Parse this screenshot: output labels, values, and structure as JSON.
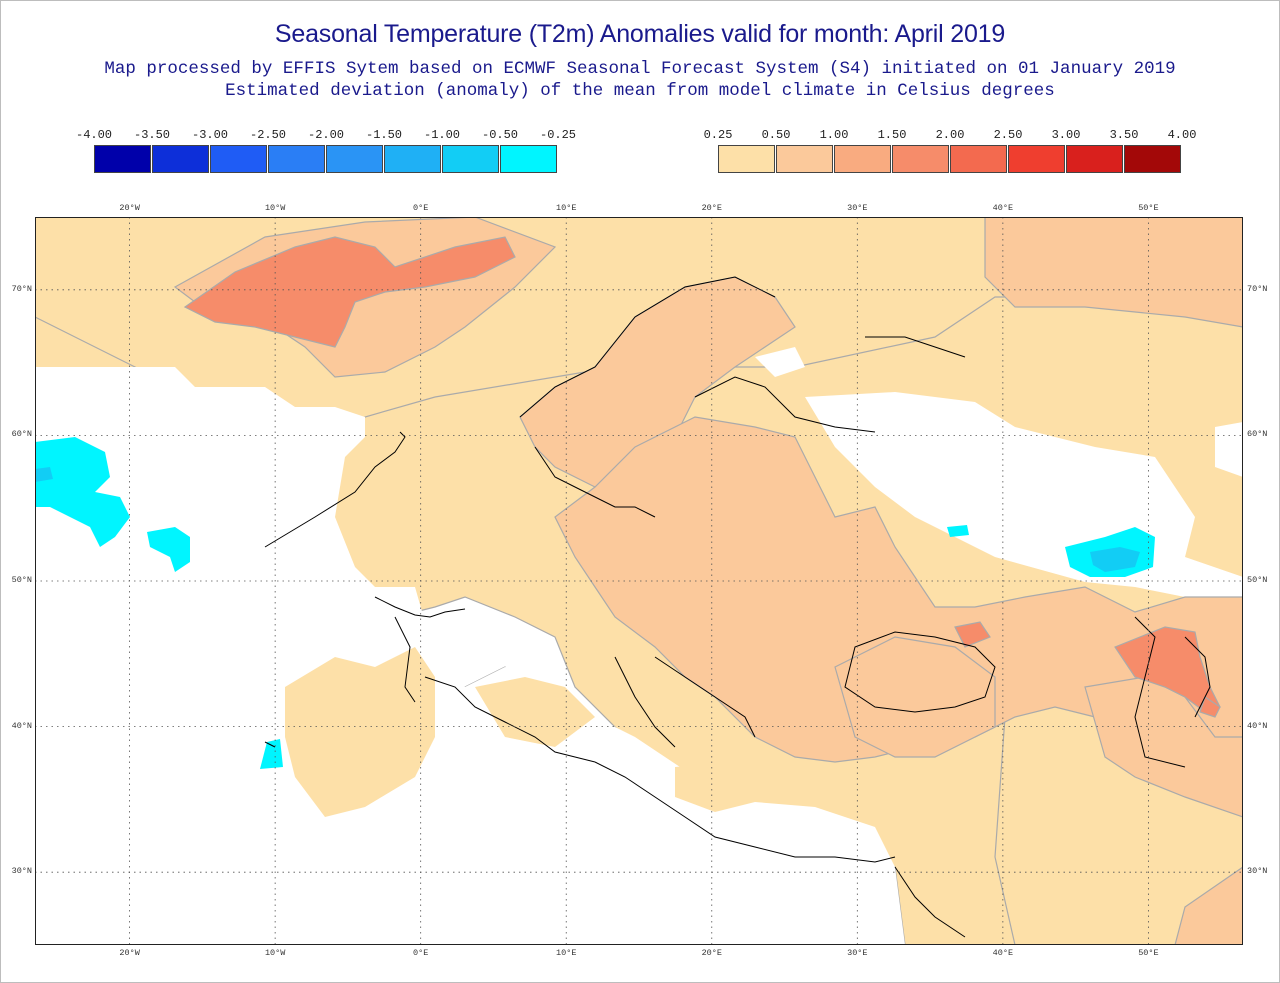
{
  "header": {
    "title": "Seasonal Temperature (T2m) Anomalies valid for month: April 2019",
    "subtitle_1": "Map processed by EFFIS Sytem based on ECMWF Seasonal Forecast System (S4) initiated on 01 January 2019",
    "subtitle_2": "Estimated deviation (anomaly) of the mean from model climate in Celsius degrees"
  },
  "legend": {
    "negative": {
      "labels": [
        "-4.00",
        "-3.50",
        "-3.00",
        "-2.50",
        "-2.00",
        "-1.50",
        "-1.00",
        "-0.50",
        "-0.25"
      ],
      "colors": [
        "#0000aa",
        "#0d2fd9",
        "#1f5cf5",
        "#2a7ef5",
        "#2a94f5",
        "#1fb0f5",
        "#12cdf5",
        "#00f5ff"
      ]
    },
    "positive": {
      "labels": [
        "0.25",
        "0.50",
        "1.00",
        "1.50",
        "2.00",
        "2.50",
        "3.00",
        "3.50",
        "4.00"
      ],
      "colors": [
        "#fde0a8",
        "#fbc99b",
        "#f9ab80",
        "#f68c6a",
        "#f36a4f",
        "#ef3e2f",
        "#d9201d",
        "#a30808"
      ]
    }
  },
  "map": {
    "lon_ticks": [
      "20°W",
      "10°W",
      "0°E",
      "10°E",
      "20°E",
      "30°E",
      "40°E",
      "50°E"
    ],
    "lat_ticks": [
      "70°N",
      "60°N",
      "50°N",
      "40°N",
      "30°N"
    ],
    "lon_range": [
      -26.5,
      56.5
    ],
    "lat_range": [
      25,
      75
    ],
    "colors": {
      "ocean_neutral": "#ffffff",
      "weak_warm": "#fde0a8",
      "moderate_warm": "#fbc99b",
      "strong_warm": "#f68c6a",
      "very_strong_warm": "#f36a4f",
      "weak_cold": "#00f5ff",
      "moderate_cold": "#12cdf5",
      "contour": "#aaaaaa",
      "coast": "#000000"
    }
  }
}
